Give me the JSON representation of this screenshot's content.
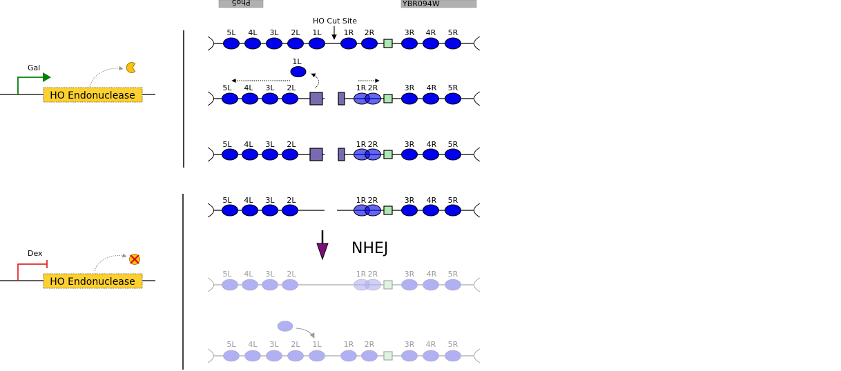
{
  "top_bars": {
    "left_label": "Pho5",
    "right_label": "YBR094W"
  },
  "cut_site_label": "HO Cut Site",
  "nhej_label": "NHEJ",
  "promoter_gal": {
    "label": "Gal",
    "gene_label": "HO Endonuclease"
  },
  "promoter_dex": {
    "label": "Dex",
    "gene_label": "HO Endonuclease"
  },
  "released_nucleosome_label": "1L",
  "row1_labels": [
    "5L",
    "4L",
    "3L",
    "2L",
    "1L",
    "1R",
    "2R",
    "3R",
    "4R",
    "5R"
  ],
  "row2_left_labels": [
    "5L",
    "4L",
    "3L",
    "2L"
  ],
  "row2_right_labels": [
    "1R",
    "2R",
    "3R",
    "4R",
    "5R"
  ],
  "row5_left_labels": [
    "5L",
    "4L",
    "3L",
    "2L"
  ],
  "row5_right_labels": [
    "1R",
    "2R",
    "3R",
    "4R",
    "5R"
  ],
  "row6_labels": [
    "5L",
    "4L",
    "3L",
    "2L",
    "1L",
    "1R",
    "2R",
    "3R",
    "4R",
    "5R"
  ],
  "colors": {
    "nucleosome": "#0000ee",
    "nucleosome_faded": "#b0b0f2",
    "square_purple": "#7a6aaf",
    "square_green": "#aee8b4",
    "gene_box": "#fcd030",
    "gal_arrow": "#008000",
    "dex_bar": "#e00000",
    "nhej_arrow": "#7a0f7a",
    "top_bar": "#b0b0b0"
  }
}
